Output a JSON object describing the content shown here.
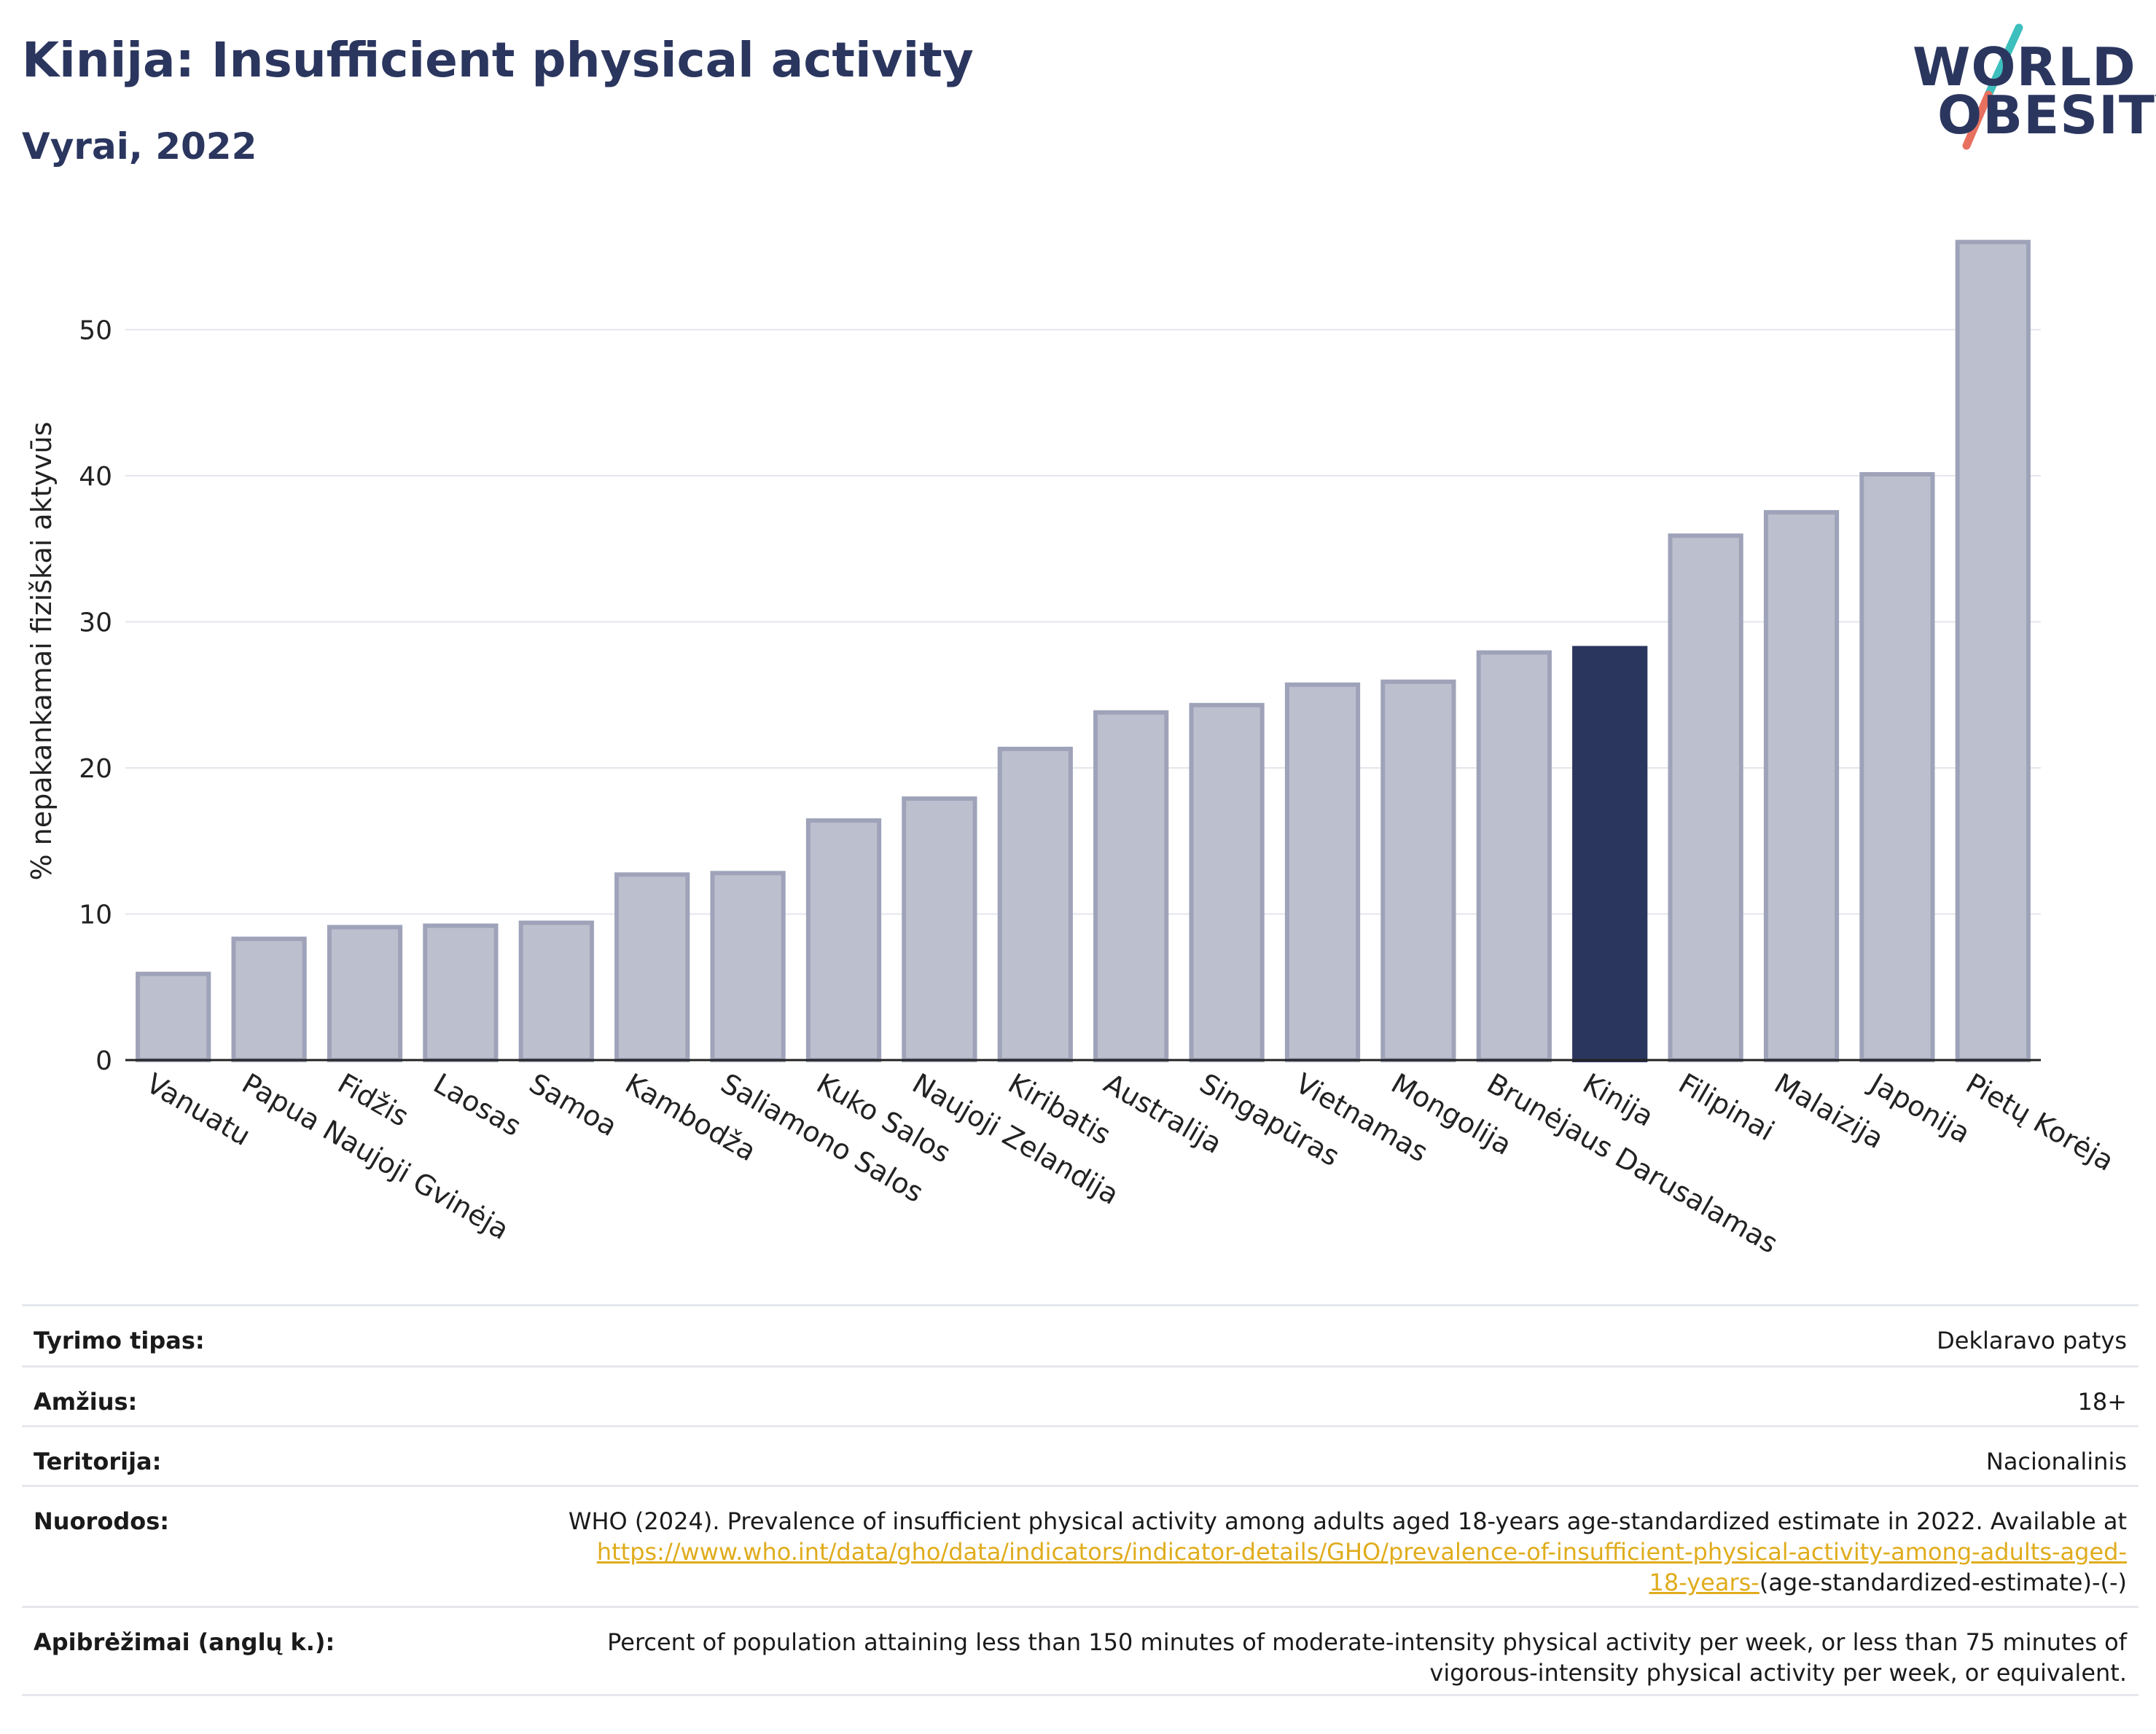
{
  "header": {
    "title": "Kinija: Insufficient physical activity",
    "subtitle": "Vyrai, 2022",
    "logo_text": [
      "WORLD",
      "OBESITY"
    ]
  },
  "colors": {
    "bar": "#bcc0ce",
    "bar_border": "#9ea3b9",
    "highlight": "#2b365f",
    "grid": "#e4e6ec",
    "logo_teal": "#3dbfbd",
    "logo_coral": "#e8705f",
    "link": "#e0ac1c"
  },
  "chart_data": {
    "type": "bar",
    "title": "Kinija: Insufficient physical activity",
    "subtitle": "Vyrai, 2022",
    "xlabel": "",
    "ylabel": "% nepakankamai fiziškai aktyvūs",
    "ylim": [
      0,
      57
    ],
    "yticks": [
      0,
      10,
      20,
      30,
      40,
      50
    ],
    "grid": true,
    "highlight": "Kinija",
    "categories": [
      "Vanuatu",
      "Papua Naujoji Gvinėja",
      "Fidžis",
      "Laosas",
      "Samoa",
      "Kambodža",
      "Saliamono Salos",
      "Kuko Salos",
      "Naujoji Zelandija",
      "Kiribatis",
      "Australija",
      "Singapūras",
      "Vietnamas",
      "Mongolija",
      "Brunėjaus Darusalamas",
      "Kinija",
      "Filipinai",
      "Malaizija",
      "Japonija",
      "Pietų Korėja"
    ],
    "values": [
      5.9,
      8.3,
      9.1,
      9.2,
      9.4,
      12.7,
      12.8,
      16.4,
      17.9,
      21.3,
      23.8,
      24.3,
      25.7,
      25.9,
      27.9,
      28.2,
      35.9,
      37.5,
      40.1,
      56.0
    ]
  },
  "meta": {
    "rows": [
      {
        "key": "Tyrimo tipas:",
        "value": "Deklaravo patys"
      },
      {
        "key": "Amžius:",
        "value": "18+"
      },
      {
        "key": "Teritorija:",
        "value": "Nacionalinis"
      }
    ],
    "references": {
      "key": "Nuorodos:",
      "text": "WHO (2024). Prevalence of insufficient physical activity among adults aged 18-years age-standardized estimate in 2022. Available at",
      "link": "https://www.who.int/data/gho/data/indicators/indicator-details/GHO/prevalence-of-insufficient-physical-activity-among-adults-aged-18-years-",
      "tail": "(age-standardized-estimate)-(-)"
    },
    "definitions": {
      "key": "Apibrėžimai (anglų k.):",
      "value": "Percent of population attaining less than 150 minutes of moderate-intensity physical activity per week, or less than 75 minutes of vigorous-intensity physical activity per week, or equivalent."
    }
  }
}
